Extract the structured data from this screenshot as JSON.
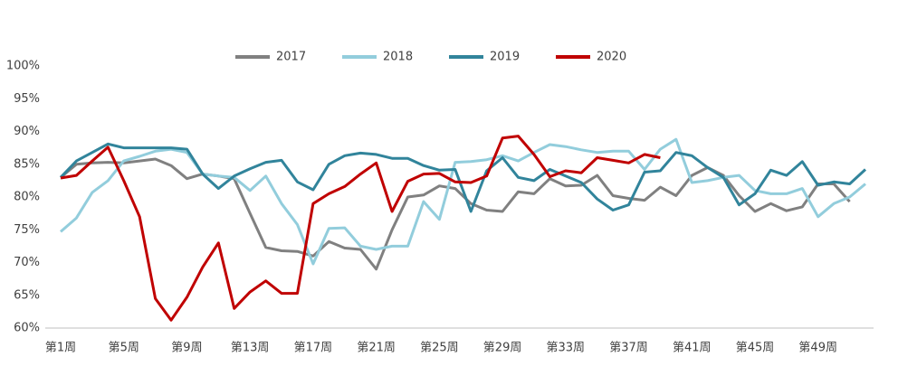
{
  "chart_data": {
    "type": "line",
    "categories": [
      "第1周",
      null,
      null,
      null,
      "第5周",
      null,
      null,
      null,
      "第9周",
      null,
      null,
      null,
      "第13周",
      null,
      null,
      null,
      "第17周",
      null,
      null,
      null,
      "第21周",
      null,
      null,
      null,
      "第25周",
      null,
      null,
      null,
      "第29周",
      null,
      null,
      null,
      "第33周",
      null,
      null,
      null,
      "第37周",
      null,
      null,
      null,
      "第41周",
      null,
      null,
      null,
      "第45周",
      null,
      null,
      null,
      "第49周",
      null,
      null,
      null
    ],
    "series": [
      {
        "name": "2017",
        "color": "#808080",
        "values": [
          83.0,
          85.0,
          85.2,
          85.3,
          85.2,
          85.5,
          85.8,
          84.8,
          82.8,
          83.5,
          83.2,
          82.8,
          77.5,
          72.3,
          71.8,
          71.7,
          71.0,
          73.2,
          72.2,
          72.0,
          69.0,
          75.0,
          80.0,
          80.3,
          81.7,
          81.3,
          79.0,
          78.0,
          77.8,
          80.8,
          80.5,
          82.8,
          81.7,
          81.8,
          83.3,
          80.2,
          79.8,
          79.5,
          81.5,
          80.2,
          83.3,
          84.5,
          83.3,
          80.2,
          77.8,
          79.0,
          77.9,
          78.5,
          82.0,
          82.0,
          79.3,
          null
        ]
      },
      {
        "name": "2018",
        "color": "#92cddc",
        "values": [
          74.7,
          76.8,
          80.7,
          82.5,
          85.5,
          86.2,
          87.0,
          87.3,
          86.8,
          83.5,
          83.2,
          83.0,
          81.0,
          83.2,
          79.0,
          75.8,
          69.8,
          75.2,
          75.3,
          72.5,
          72.0,
          72.5,
          72.5,
          79.3,
          76.6,
          85.3,
          85.4,
          85.7,
          86.3,
          85.5,
          86.8,
          88.0,
          87.7,
          87.2,
          86.8,
          87.0,
          87.0,
          84.2,
          87.3,
          88.8,
          82.2,
          82.5,
          83.0,
          83.3,
          81.0,
          80.5,
          80.5,
          81.3,
          77.0,
          79.0,
          80.0,
          82.0
        ]
      },
      {
        "name": "2019",
        "color": "#31849b",
        "values": [
          83.0,
          85.5,
          86.8,
          88.1,
          87.5,
          87.5,
          87.5,
          87.5,
          87.3,
          83.5,
          81.3,
          83.2,
          84.3,
          85.3,
          85.6,
          82.3,
          81.1,
          85.0,
          86.3,
          86.7,
          86.5,
          85.9,
          85.9,
          84.8,
          84.1,
          84.2,
          77.8,
          84.0,
          86.0,
          83.0,
          82.5,
          84.2,
          83.2,
          82.2,
          79.7,
          78.0,
          78.8,
          83.8,
          84.0,
          86.8,
          86.3,
          84.5,
          83.0,
          78.8,
          80.5,
          84.1,
          83.3,
          85.4,
          81.8,
          82.3,
          82.0,
          84.2
        ]
      },
      {
        "name": "2020",
        "color": "#c00000",
        "values": [
          82.9,
          83.3,
          85.5,
          87.6,
          82.5,
          77.0,
          64.5,
          61.2,
          64.7,
          69.3,
          73.0,
          63.0,
          65.5,
          67.2,
          65.3,
          65.3,
          79.0,
          80.5,
          81.6,
          83.5,
          85.2,
          77.8,
          82.4,
          83.5,
          83.6,
          82.3,
          82.2,
          83.2,
          89.0,
          89.3,
          86.5,
          83.1,
          84.0,
          83.7,
          86.0,
          85.6,
          85.2,
          86.5,
          86.0,
          null,
          null,
          null,
          null,
          null,
          null,
          null,
          null,
          null,
          null,
          null,
          null,
          null
        ]
      }
    ],
    "ylim": [
      60,
      100
    ],
    "yticks": [
      {
        "value": 60,
        "label": "60%"
      },
      {
        "value": 65,
        "label": "65%"
      },
      {
        "value": 70,
        "label": "70%"
      },
      {
        "value": 75,
        "label": "75%"
      },
      {
        "value": 80,
        "label": "80%"
      },
      {
        "value": 85,
        "label": "85%"
      },
      {
        "value": 90,
        "label": "90%"
      },
      {
        "value": 95,
        "label": "95%"
      },
      {
        "value": 100,
        "label": "100%"
      }
    ],
    "legend": "top",
    "grid": false
  }
}
